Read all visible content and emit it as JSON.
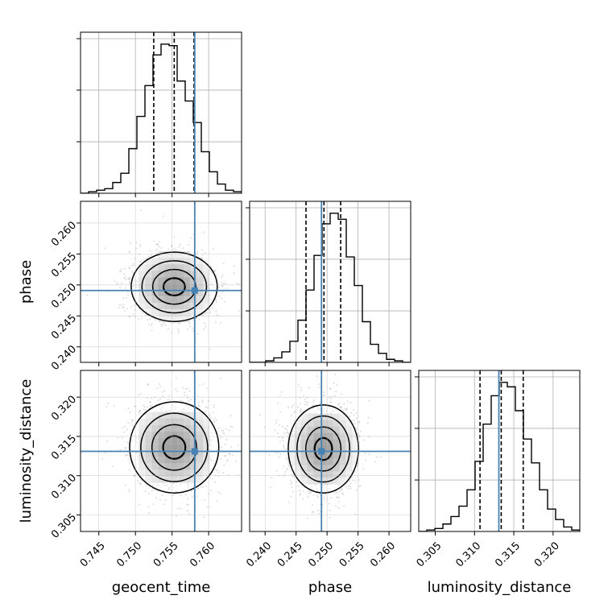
{
  "chart_data": {
    "type": "corner",
    "parameters": [
      {
        "name": "geocent_time",
        "label": "geocent_time",
        "range": [
          0.7425,
          0.7645
        ],
        "ticks": [
          "0.745",
          "0.750",
          "0.755",
          "0.760"
        ],
        "tick_values": [
          0.745,
          0.75,
          0.755,
          0.76
        ],
        "truth": 0.7581,
        "quantiles": [
          0.7525,
          0.7553,
          0.758
        ]
      },
      {
        "name": "phase",
        "label": "phase",
        "range": [
          0.2375,
          0.2635
        ],
        "ticks": [
          "0.240",
          "0.245",
          "0.250",
          "0.255",
          "0.260"
        ],
        "tick_values": [
          0.24,
          0.245,
          0.25,
          0.255,
          0.26
        ],
        "truth": 0.2491,
        "quantiles": [
          0.2466,
          0.2495,
          0.2522
        ]
      },
      {
        "name": "luminosity_distance",
        "label": "luminosity_distance",
        "range": [
          0.3029,
          0.3234
        ],
        "ticks": [
          "0.305",
          "0.310",
          "0.315",
          "0.320"
        ],
        "tick_values": [
          0.305,
          0.31,
          0.315,
          0.32
        ],
        "truth": 0.3131,
        "quantiles": [
          0.3107,
          0.3134,
          0.3162
        ]
      }
    ],
    "histograms": [
      {
        "parameter": "geocent_time",
        "edges_range": [
          0.7425,
          0.7645
        ],
        "counts": [
          0,
          1,
          2,
          3,
          7,
          13,
          29,
          50,
          70,
          90,
          97,
          96,
          73,
          60,
          46,
          27,
          14,
          6,
          2,
          1
        ]
      },
      {
        "parameter": "phase",
        "edges_range": [
          0.2375,
          0.2635
        ],
        "counts": [
          0,
          0,
          1,
          3,
          7,
          14,
          28,
          48,
          71,
          92,
          99,
          95,
          70,
          51,
          27,
          12,
          6,
          2,
          1,
          0
        ]
      },
      {
        "parameter": "luminosity_distance",
        "edges_range": [
          0.3029,
          0.3234
        ],
        "counts": [
          0,
          1,
          2,
          5,
          10,
          17,
          28,
          47,
          72,
          91,
          100,
          97,
          81,
          62,
          46,
          28,
          15,
          8,
          3,
          1
        ]
      }
    ],
    "pairs": [
      {
        "x": "geocent_time",
        "y": "phase",
        "center": [
          0.7553,
          0.2497
        ],
        "sigma": [
          0.0028,
          0.0028
        ],
        "peak_offset": [
          0.0005,
          0.0003
        ]
      },
      {
        "x": "geocent_time",
        "y": "luminosity_distance",
        "center": [
          0.7553,
          0.3136
        ],
        "sigma": [
          0.0029,
          0.0029
        ],
        "peak_offset": [
          0.0,
          -0.0002
        ]
      },
      {
        "x": "phase",
        "y": "luminosity_distance",
        "center": [
          0.2494,
          0.3134
        ],
        "sigma": [
          0.0027,
          0.0028
        ],
        "peak_offset": [
          0.0,
          0.0
        ]
      }
    ],
    "colors": {
      "truth": "#4682b4",
      "hist": "#000000",
      "grid": "#b0b0b0",
      "scatter": "#888888"
    },
    "grid": true,
    "legend": "none"
  }
}
